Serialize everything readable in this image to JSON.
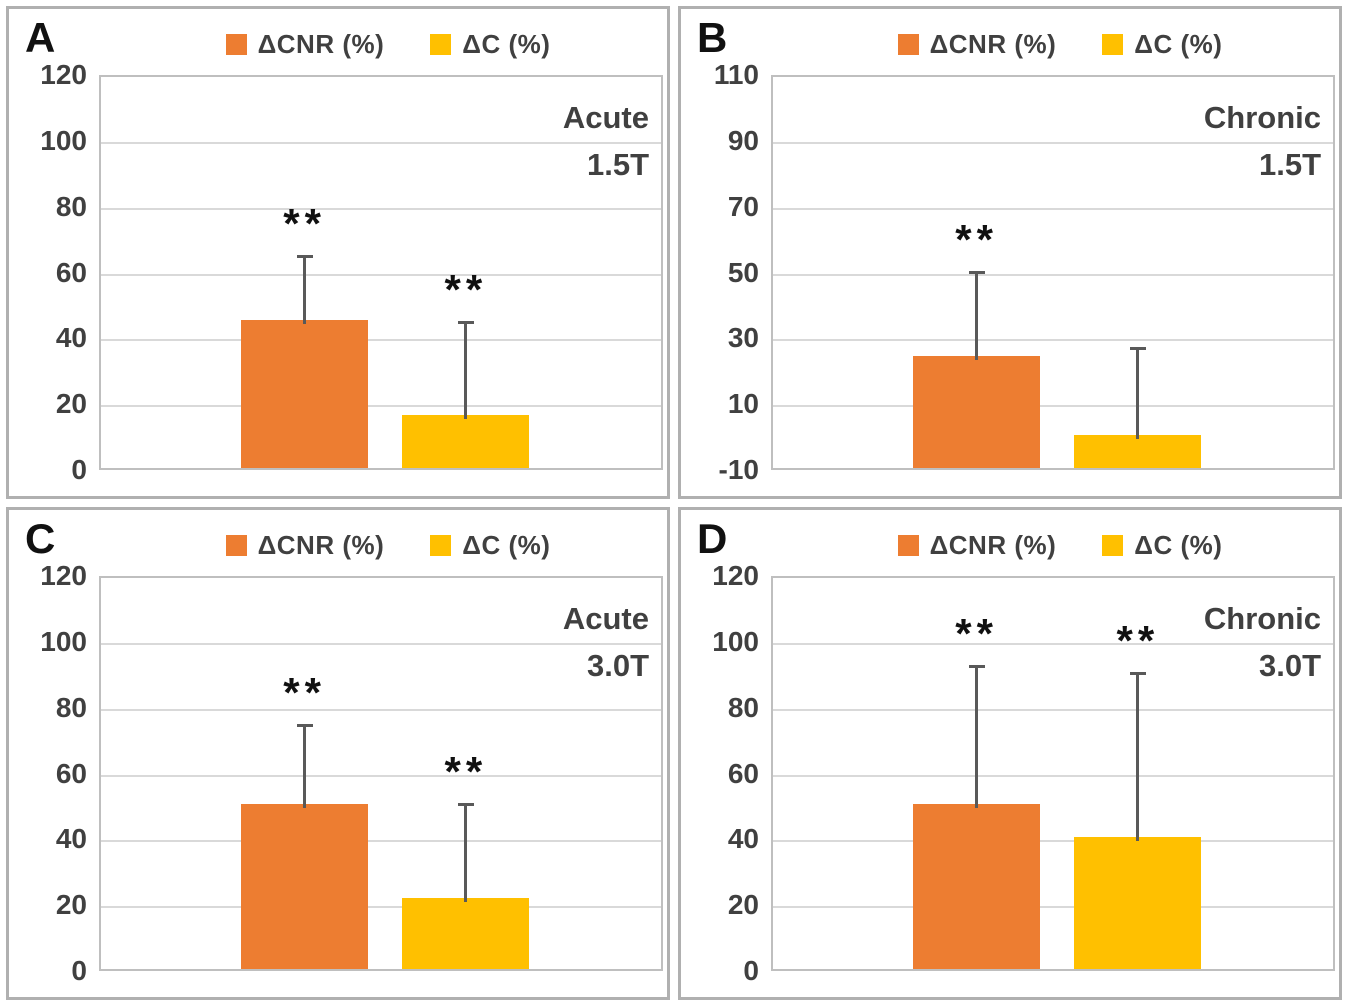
{
  "legend": {
    "series": [
      {
        "label": "ΔCNR (%)",
        "color": "#ED7D31"
      },
      {
        "label": "ΔC (%)",
        "color": "#FFC000"
      }
    ]
  },
  "style": {
    "error_bar_color": "#595959",
    "tick_text_color": "#404040",
    "gridline_color": "#d9d9d9",
    "plot_border_color": "#bfbfbf",
    "panel_border_color": "#b0b0b0",
    "sig_color": "#111111"
  },
  "chart_data": [
    {
      "id": "A",
      "type": "bar",
      "letter": "A",
      "annotation": [
        "Acute",
        "1.5T"
      ],
      "categories": [
        "ΔCNR (%)",
        "ΔC (%)"
      ],
      "series": [
        {
          "name": "ΔCNR (%)",
          "value": 45,
          "error_top": 66,
          "significance": "**",
          "color": "#ED7D31"
        },
        {
          "name": "ΔC (%)",
          "value": 16,
          "error_top": 46,
          "significance": "**",
          "color": "#FFC000"
        }
      ],
      "ylim": [
        0,
        120
      ],
      "yticks": [
        120,
        100,
        80,
        60,
        40,
        20,
        0
      ],
      "grid": true,
      "legend_position": "top"
    },
    {
      "id": "B",
      "type": "bar",
      "letter": "B",
      "annotation": [
        "Chronic",
        "1.5T"
      ],
      "categories": [
        "ΔCNR (%)",
        "ΔC (%)"
      ],
      "series": [
        {
          "name": "ΔCNR (%)",
          "value": 24,
          "error_top": 51,
          "significance": "**",
          "color": "#ED7D31"
        },
        {
          "name": "ΔC (%)",
          "value": 0,
          "error_top": 28,
          "significance": "",
          "color": "#FFC000"
        }
      ],
      "ylim": [
        -10,
        110
      ],
      "yticks": [
        110,
        90,
        70,
        50,
        30,
        10,
        -10
      ],
      "grid": true,
      "legend_position": "top"
    },
    {
      "id": "C",
      "type": "bar",
      "letter": "C",
      "annotation": [
        "Acute",
        "3.0T"
      ],
      "categories": [
        "ΔCNR (%)",
        "ΔC (%)"
      ],
      "series": [
        {
          "name": "ΔCNR (%)",
          "value": 50,
          "error_top": 75.5,
          "significance": "**",
          "color": "#ED7D31"
        },
        {
          "name": "ΔC (%)",
          "value": 21.5,
          "error_top": 51.5,
          "significance": "**",
          "color": "#FFC000"
        }
      ],
      "ylim": [
        0,
        120
      ],
      "yticks": [
        120,
        100,
        80,
        60,
        40,
        20,
        0
      ],
      "grid": true,
      "legend_position": "top"
    },
    {
      "id": "D",
      "type": "bar",
      "letter": "D",
      "annotation": [
        "Chronic",
        "3.0T"
      ],
      "categories": [
        "ΔCNR (%)",
        "ΔC (%)"
      ],
      "series": [
        {
          "name": "ΔCNR (%)",
          "value": 50,
          "error_top": 93.5,
          "significance": "**",
          "color": "#ED7D31"
        },
        {
          "name": "ΔC (%)",
          "value": 40,
          "error_top": 91.5,
          "significance": "**",
          "color": "#FFC000"
        }
      ],
      "ylim": [
        0,
        120
      ],
      "yticks": [
        120,
        100,
        80,
        60,
        40,
        20,
        0
      ],
      "grid": true,
      "legend_position": "top"
    }
  ]
}
